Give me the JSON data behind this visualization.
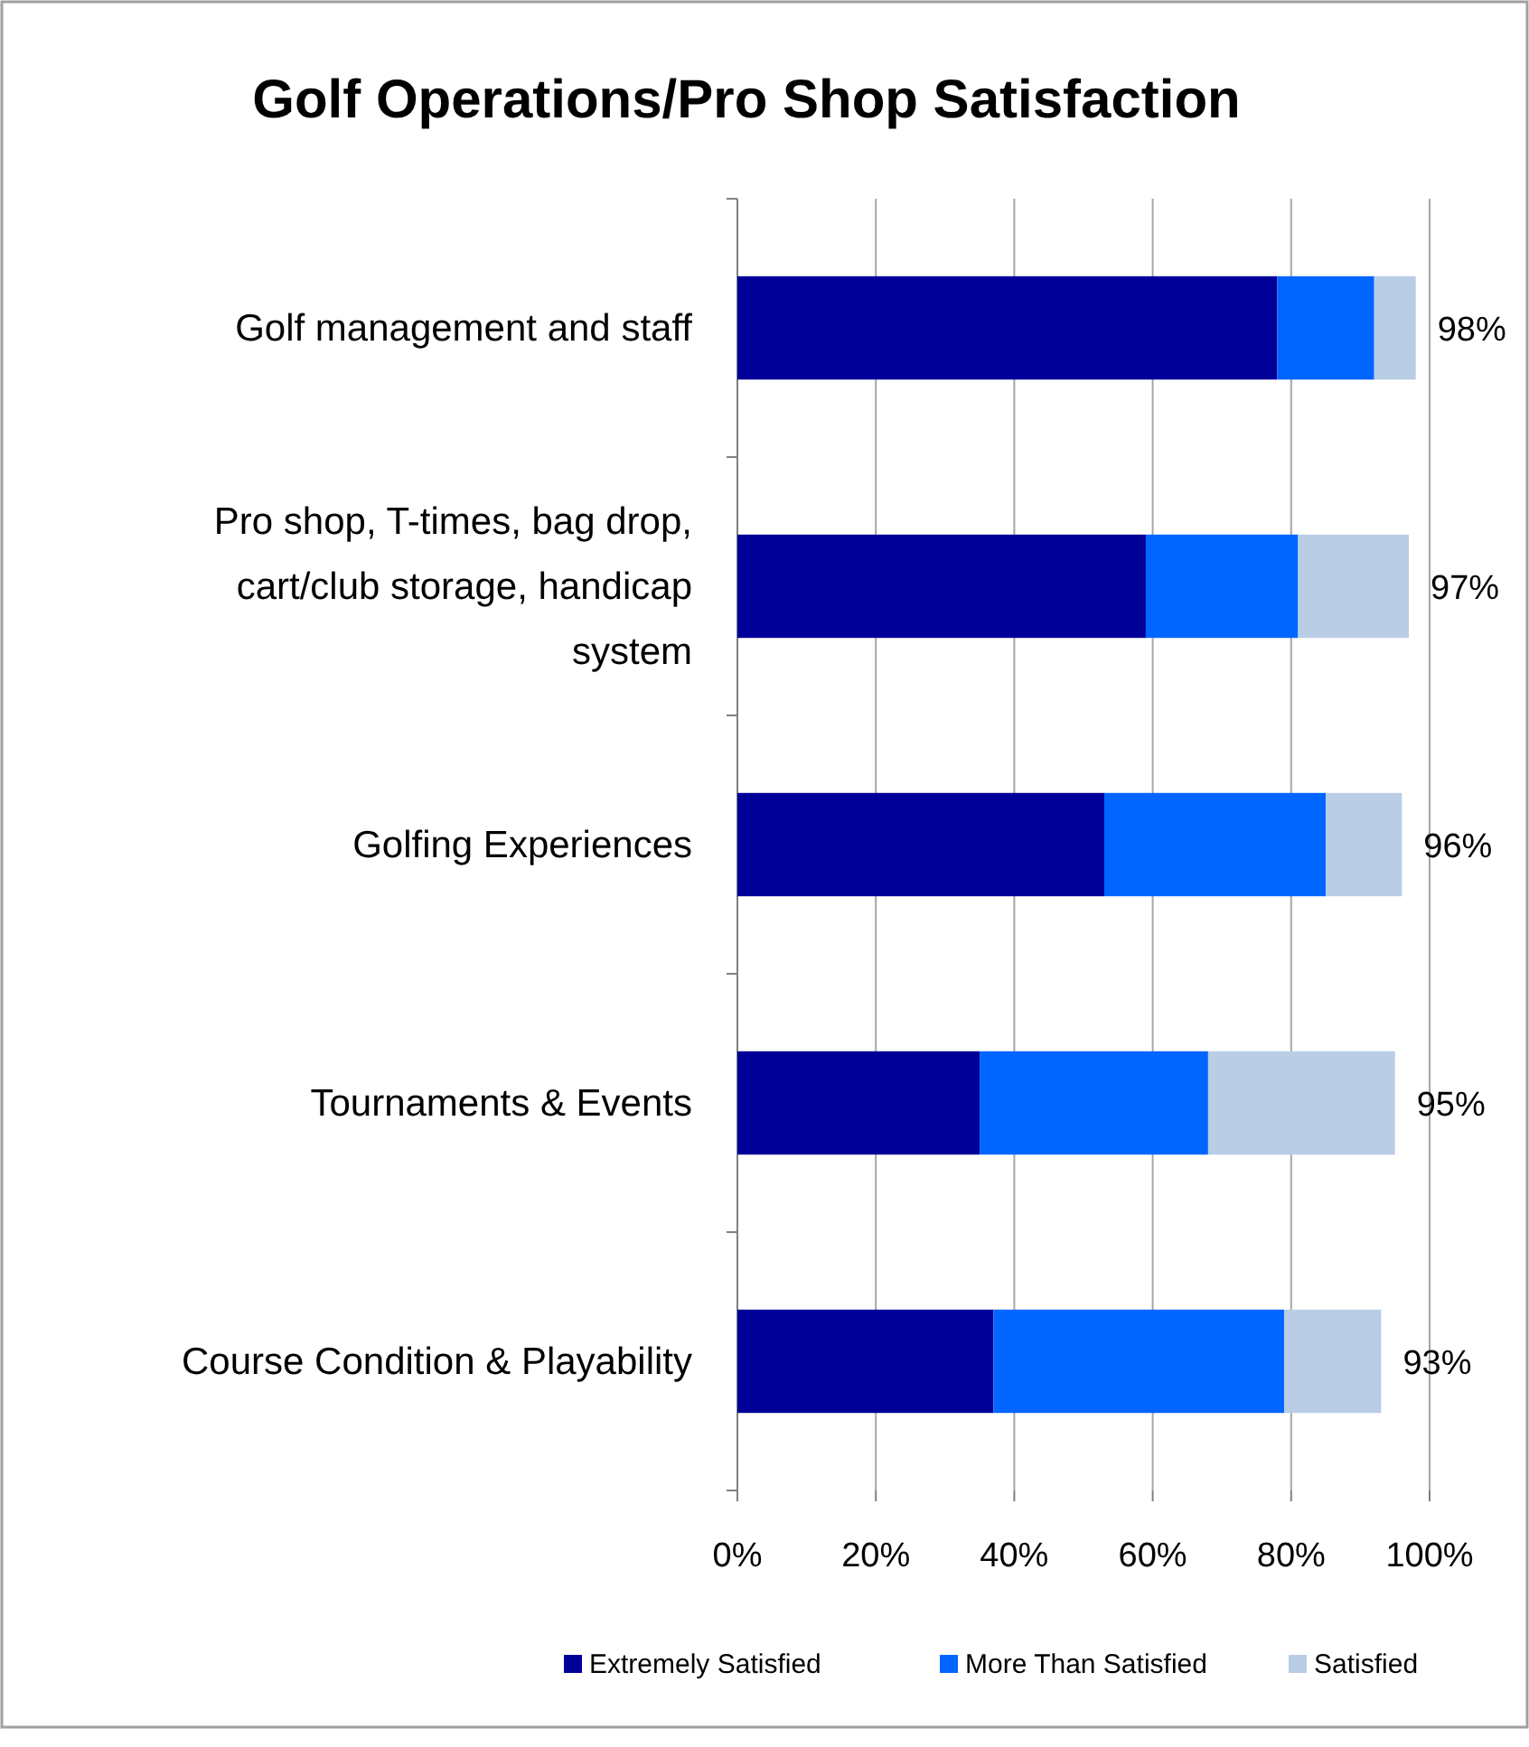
{
  "chart_data": {
    "type": "bar",
    "orientation": "horizontal",
    "stacked": true,
    "title": "Golf Operations/Pro Shop Satisfaction",
    "categories": [
      "Golf management and staff",
      "Pro shop, T-times, bag drop, cart/club storage, handicap system",
      "Golfing Experiences",
      "Tournaments & Events",
      "Course Condition & Playability"
    ],
    "series": [
      {
        "name": "Extremely Satisfied",
        "color": "#000099",
        "values": [
          78,
          59,
          53,
          35,
          37
        ]
      },
      {
        "name": "More Than Satisfied",
        "color": "#0066ff",
        "values": [
          14,
          22,
          32,
          33,
          42
        ]
      },
      {
        "name": "Satisfied",
        "color": "#b9cde5",
        "values": [
          6,
          16,
          11,
          27,
          14
        ]
      }
    ],
    "totals": [
      "98%",
      "97%",
      "96%",
      "95%",
      "93%"
    ],
    "xlim": [
      0,
      100
    ],
    "xticks": [
      {
        "value": 0,
        "label": "0%"
      },
      {
        "value": 20,
        "label": "20%"
      },
      {
        "value": 40,
        "label": "40%"
      },
      {
        "value": 60,
        "label": "60%"
      },
      {
        "value": 80,
        "label": "80%"
      },
      {
        "value": 100,
        "label": "100%"
      }
    ],
    "grid": "x",
    "legend": "bottom"
  }
}
